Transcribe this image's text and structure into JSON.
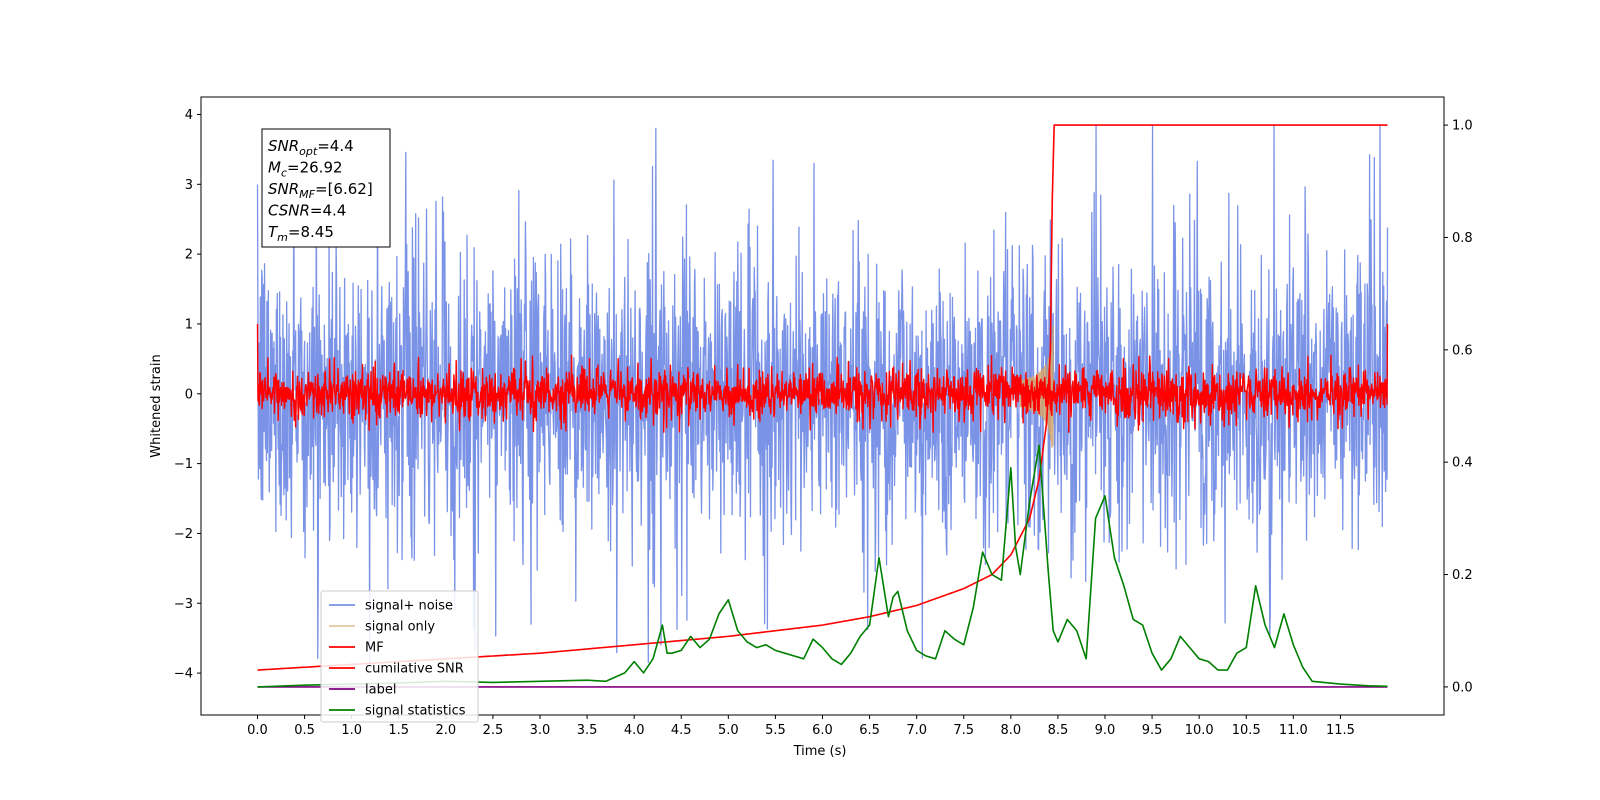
{
  "chart_data": {
    "type": "line",
    "title": "",
    "xlabel": "Time (s)",
    "ylabel": "Whitened strain",
    "ylabel_right": "",
    "xlim": [
      -0.6,
      12.6
    ],
    "ylim": [
      -4.6,
      4.25
    ],
    "ylim_right": [
      -0.05,
      1.05
    ],
    "x_ticks": [
      0.0,
      0.5,
      1.0,
      1.5,
      2.0,
      2.5,
      3.0,
      3.5,
      4.0,
      4.5,
      5.0,
      5.5,
      6.0,
      6.5,
      7.0,
      7.5,
      8.0,
      8.5,
      9.0,
      9.5,
      10.0,
      10.5,
      11.0,
      11.5
    ],
    "x_tick_labels": [
      "0.0",
      "0.5",
      "1.0",
      "1.5",
      "2.0",
      "2.5",
      "3.0",
      "3.5",
      "4.0",
      "4.5",
      "5.0",
      "5.5",
      "6.0",
      "6.5",
      "7.0",
      "7.5",
      "8.0",
      "8.5",
      "9.0",
      "9.5",
      "10.0",
      "10.5",
      "11.0",
      "11.5"
    ],
    "y_ticks": [
      -4,
      -3,
      -2,
      -1,
      0,
      1,
      2,
      3,
      4
    ],
    "y_tick_labels": [
      "−4",
      "−3",
      "−2",
      "−1",
      "0",
      "1",
      "2",
      "3",
      "4"
    ],
    "y_ticks_right": [
      0.0,
      0.2,
      0.4,
      0.6,
      0.8,
      1.0
    ],
    "y_tick_labels_right": [
      "0.0",
      "0.2",
      "0.4",
      "0.6",
      "0.8",
      "1.0"
    ],
    "grid": false,
    "legend_position": "bottom-left",
    "series": [
      {
        "name": "signal+ noise",
        "axis": "left",
        "color": "#7a93e6",
        "style": "noise",
        "x_range": [
          0.0,
          12.0
        ],
        "amplitude_typical": 1.2,
        "amplitude_peak": 3.85
      },
      {
        "name": "signal only",
        "axis": "left",
        "color": "#d4a36a",
        "style": "chirp",
        "x_range": [
          8.1,
          8.46
        ],
        "peak_time": 8.45,
        "peak_amplitude": 1.1
      },
      {
        "name": "MF",
        "axis": "left",
        "color": "#ff0000",
        "style": "noise",
        "x_range": [
          0.0,
          12.0
        ],
        "amplitude_typical": 0.2,
        "amplitude_peak": 0.55,
        "endpoint_values": [
          1.0,
          1.0
        ]
      },
      {
        "name": "cumilative SNR",
        "axis": "right",
        "color": "#ff0000",
        "x": [
          0.0,
          1.0,
          2.0,
          3.0,
          4.0,
          5.0,
          5.5,
          6.0,
          6.5,
          7.0,
          7.5,
          7.8,
          8.0,
          8.2,
          8.3,
          8.38,
          8.42,
          8.45,
          8.5,
          12.0
        ],
        "y": [
          0.03,
          0.04,
          0.05,
          0.06,
          0.075,
          0.09,
          0.1,
          0.11,
          0.125,
          0.145,
          0.175,
          0.2,
          0.235,
          0.3,
          0.37,
          0.47,
          0.6,
          1.0,
          1.0,
          1.0
        ]
      },
      {
        "name": "label",
        "axis": "right",
        "color": "#800080",
        "x": [
          0.0,
          12.0
        ],
        "y": [
          0.0,
          0.0
        ]
      },
      {
        "name": "signal statistics",
        "axis": "right",
        "color": "#008000",
        "x": [
          0.0,
          0.5,
          1.0,
          1.5,
          2.0,
          2.5,
          3.0,
          3.5,
          3.7,
          3.9,
          4.0,
          4.1,
          4.2,
          4.3,
          4.35,
          4.4,
          4.5,
          4.6,
          4.7,
          4.8,
          4.9,
          5.0,
          5.1,
          5.2,
          5.3,
          5.4,
          5.5,
          5.6,
          5.7,
          5.8,
          5.9,
          6.0,
          6.1,
          6.2,
          6.3,
          6.4,
          6.5,
          6.6,
          6.7,
          6.75,
          6.8,
          6.9,
          7.0,
          7.1,
          7.2,
          7.3,
          7.4,
          7.5,
          7.6,
          7.7,
          7.8,
          7.9,
          8.0,
          8.05,
          8.1,
          8.2,
          8.3,
          8.4,
          8.45,
          8.5,
          8.6,
          8.7,
          8.8,
          8.9,
          9.0,
          9.1,
          9.2,
          9.3,
          9.4,
          9.5,
          9.6,
          9.7,
          9.8,
          9.9,
          10.0,
          10.1,
          10.2,
          10.3,
          10.4,
          10.5,
          10.6,
          10.7,
          10.8,
          10.9,
          11.0,
          11.1,
          11.2,
          11.5,
          11.8,
          12.0
        ],
        "y": [
          0.0,
          0.003,
          0.005,
          0.007,
          0.01,
          0.008,
          0.01,
          0.012,
          0.01,
          0.025,
          0.045,
          0.025,
          0.05,
          0.11,
          0.06,
          0.06,
          0.065,
          0.09,
          0.07,
          0.085,
          0.13,
          0.155,
          0.1,
          0.08,
          0.07,
          0.075,
          0.065,
          0.06,
          0.055,
          0.05,
          0.085,
          0.07,
          0.05,
          0.04,
          0.06,
          0.09,
          0.11,
          0.23,
          0.125,
          0.16,
          0.17,
          0.1,
          0.065,
          0.055,
          0.05,
          0.1,
          0.085,
          0.075,
          0.14,
          0.24,
          0.2,
          0.19,
          0.39,
          0.25,
          0.2,
          0.33,
          0.43,
          0.2,
          0.1,
          0.08,
          0.12,
          0.1,
          0.05,
          0.3,
          0.34,
          0.23,
          0.18,
          0.12,
          0.11,
          0.06,
          0.03,
          0.05,
          0.09,
          0.07,
          0.05,
          0.045,
          0.03,
          0.03,
          0.06,
          0.07,
          0.18,
          0.11,
          0.07,
          0.13,
          0.075,
          0.035,
          0.01,
          0.005,
          0.002,
          0.001
        ]
      }
    ],
    "annotation_box": {
      "lines": [
        {
          "sym": "SNR",
          "sub": "opt",
          "value": "=4.4"
        },
        {
          "sym": "M",
          "sub": "c",
          "value": "=26.92"
        },
        {
          "sym": "SNR",
          "sub": "MF",
          "value": "=[6.62]"
        },
        {
          "sym": "CSNR",
          "sub": "",
          "value": "=4.4"
        },
        {
          "sym": "T",
          "sub": "m",
          "value": "=8.45"
        }
      ]
    }
  }
}
